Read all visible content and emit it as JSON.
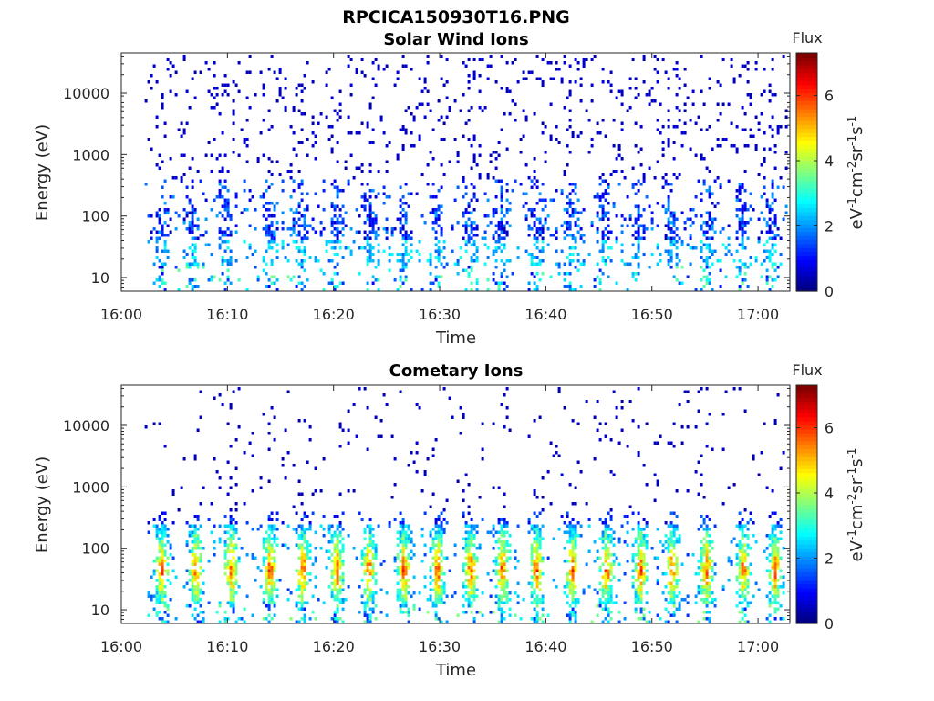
{
  "figure": {
    "title": "RPCICA150930T16.PNG"
  },
  "chart_data": [
    {
      "type": "heatmap",
      "title": "Solar Wind Ions",
      "xlabel": "Time",
      "ylabel": "Energy (eV)",
      "x_ticks": [
        "16:00",
        "16:10",
        "16:20",
        "16:30",
        "16:40",
        "16:50",
        "17:00"
      ],
      "y_ticks": [
        "10",
        "100",
        "1000",
        "10000"
      ],
      "y_scale": "log",
      "xlim": [
        "16:00",
        "17:03"
      ],
      "ylim": [
        6,
        45000
      ],
      "colorbar": {
        "title": "Flux",
        "label": "eV-1cm-2sr-1s-1",
        "ticks": [
          "0",
          "2",
          "4",
          "6"
        ],
        "range": [
          0,
          7.3
        ],
        "colormap": "jet"
      },
      "bursts": [
        3.7,
        6.5,
        9.6,
        13.9,
        16.8,
        20.2,
        23.3,
        26.5,
        29.6,
        32.8,
        35.6,
        39.0,
        42.2,
        45.3,
        48.7,
        51.8,
        55.1,
        58.5,
        61.2
      ],
      "bg": "#ffffff"
    },
    {
      "type": "heatmap",
      "title": "Cometary Ions",
      "xlabel": "Time",
      "ylabel": "Energy (eV)",
      "x_ticks": [
        "16:00",
        "16:10",
        "16:20",
        "16:30",
        "16:40",
        "16:50",
        "17:00"
      ],
      "y_ticks": [
        "10",
        "100",
        "1000",
        "10000"
      ],
      "y_scale": "log",
      "xlim": [
        "16:00",
        "17:03"
      ],
      "ylim": [
        6,
        45000
      ],
      "colorbar": {
        "title": "Flux",
        "label": "eV-1cm-2sr-1s-1",
        "ticks": [
          "0",
          "2",
          "4",
          "6"
        ],
        "range": [
          0,
          7.3
        ],
        "colormap": "jet"
      },
      "bursts": [
        3.7,
        6.9,
        10.3,
        13.9,
        17.0,
        20.2,
        23.2,
        26.5,
        29.7,
        32.8,
        35.8,
        39.0,
        42.4,
        45.6,
        48.8,
        51.8,
        55.0,
        58.5,
        61.5
      ],
      "bg": "#ffffff"
    }
  ]
}
